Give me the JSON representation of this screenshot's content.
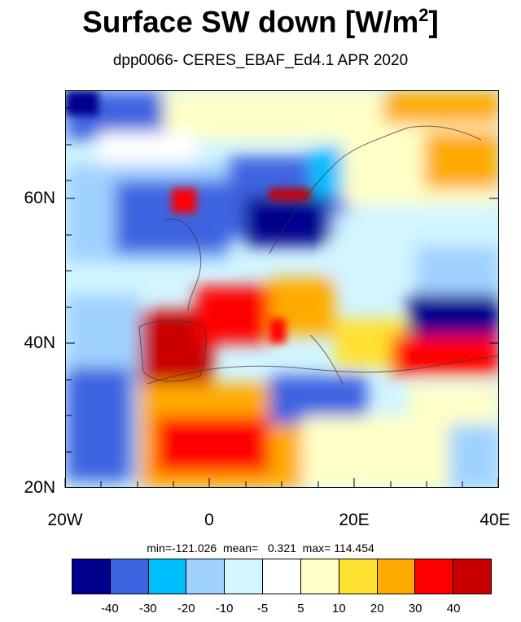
{
  "title": "Surface SW down [W/m",
  "title_sup": "2",
  "title_end": "]",
  "subtitle": "dpp0066- CERES_EBAF_Ed4.1  APR 2020",
  "y_labels": [
    "60N",
    "40N",
    "20N"
  ],
  "x_labels": [
    "20W",
    "0",
    "20E",
    "40E"
  ],
  "stats_text": "min=-121.026  mean=   0.321  max= 114.454",
  "stats": {
    "min": -121.026,
    "mean": 0.321,
    "max": 114.454
  },
  "colorbar": {
    "colors": [
      "#00008c",
      "#3c64e0",
      "#00bfff",
      "#a0d2ff",
      "#d2f5ff",
      "#ffffff",
      "#ffffc8",
      "#ffe132",
      "#ffaa00",
      "#ff0000",
      "#c80000"
    ],
    "labels": [
      "-40",
      "-30",
      "-20",
      "-10",
      "-5",
      "5",
      "10",
      "20",
      "30",
      "40"
    ]
  }
}
